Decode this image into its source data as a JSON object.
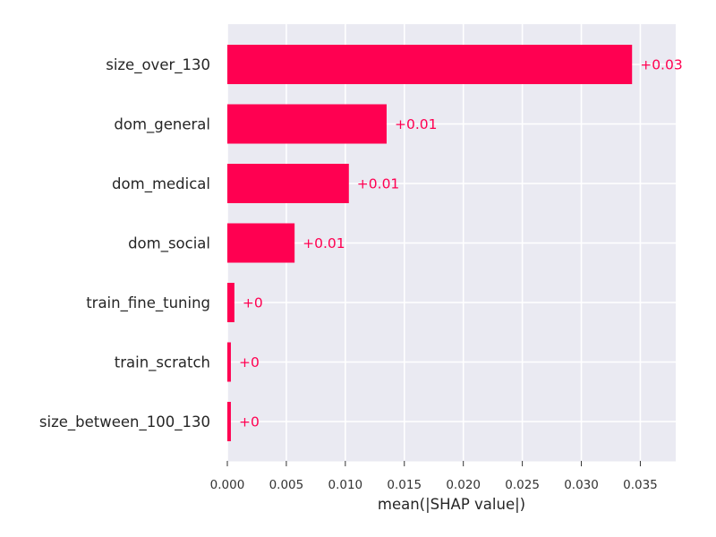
{
  "chart_data": {
    "type": "bar",
    "orientation": "horizontal",
    "categories": [
      "size_over_130",
      "dom_general",
      "dom_medical",
      "dom_social",
      "train_fine_tuning",
      "train_scratch",
      "size_between_100_130"
    ],
    "values": [
      0.0343,
      0.0135,
      0.0103,
      0.0057,
      0.0006,
      0.0003,
      0.0003
    ],
    "value_labels": [
      "+0.03",
      "+0.01",
      "+0.01",
      "+0.01",
      "+0",
      "+0",
      "+0"
    ],
    "xlabel": "mean(|SHAP value|)",
    "ylabel": "",
    "title": "",
    "xlim": [
      0,
      0.038
    ],
    "x_ticks": [
      0.0,
      0.005,
      0.01,
      0.015,
      0.02,
      0.025,
      0.03,
      0.035
    ],
    "x_tick_labels": [
      "0.000",
      "0.005",
      "0.010",
      "0.015",
      "0.020",
      "0.025",
      "0.030",
      "0.035"
    ],
    "grid": true,
    "colors": {
      "bar": "#ff0051",
      "value_label": "#ff0051",
      "plot_background": "#eaeaf2",
      "grid": "#ffffff",
      "axis_text": "#262626",
      "tick_text": "#333333"
    }
  }
}
